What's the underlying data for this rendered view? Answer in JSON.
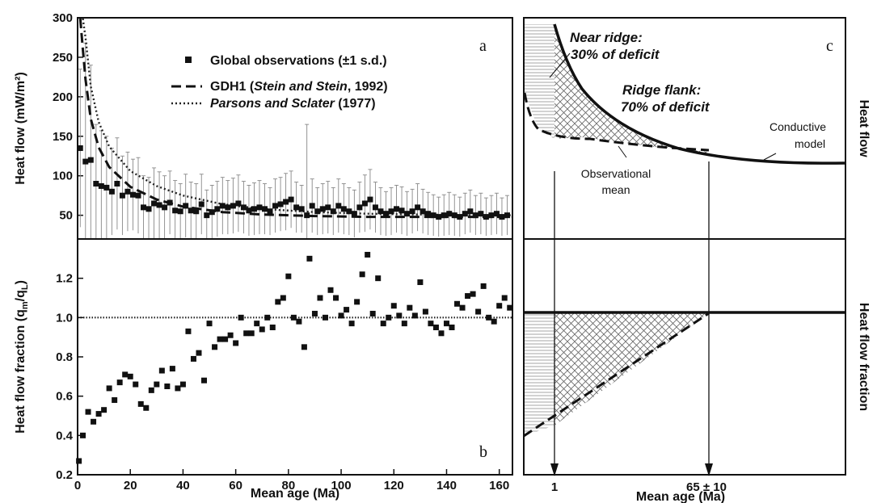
{
  "chart_data": [
    {
      "panel": "a",
      "type": "scatter",
      "ylabel": "Heat flow (mW/m²)",
      "xlim": [
        0,
        165
      ],
      "ylim": [
        20,
        300
      ],
      "yticks": [
        50,
        100,
        150,
        200,
        250,
        300
      ],
      "legend": {
        "placement": "top-center",
        "entries": [
          {
            "marker": "square",
            "text": "Global observations (±1 s.d.)"
          },
          {
            "marker": "dash",
            "text_parts": [
              "GDH1 (",
              "Stein and Stein",
              ", 1992)"
            ]
          },
          {
            "marker": "dot",
            "text_parts": [
              "Parsons and Sclater",
              " (1977)"
            ]
          }
        ]
      },
      "series": [
        {
          "name": "Global observations (±1 s.d.)",
          "points": [
            {
              "x": 1,
              "y": 135,
              "err": 100
            },
            {
              "x": 3,
              "y": 118,
              "err": 150
            },
            {
              "x": 5,
              "y": 120,
              "err": 120
            },
            {
              "x": 7,
              "y": 90,
              "err": 75
            },
            {
              "x": 9,
              "y": 87,
              "err": 70
            },
            {
              "x": 11,
              "y": 85,
              "err": 65
            },
            {
              "x": 13,
              "y": 80,
              "err": 55
            },
            {
              "x": 15,
              "y": 90,
              "err": 58
            },
            {
              "x": 17,
              "y": 75,
              "err": 50
            },
            {
              "x": 19,
              "y": 80,
              "err": 50
            },
            {
              "x": 21,
              "y": 76,
              "err": 45
            },
            {
              "x": 23,
              "y": 75,
              "err": 48
            },
            {
              "x": 25,
              "y": 60,
              "err": 40
            },
            {
              "x": 27,
              "y": 58,
              "err": 40
            },
            {
              "x": 29,
              "y": 65,
              "err": 45
            },
            {
              "x": 31,
              "y": 63,
              "err": 42
            },
            {
              "x": 33,
              "y": 60,
              "err": 40
            },
            {
              "x": 35,
              "y": 66,
              "err": 40
            },
            {
              "x": 37,
              "y": 56,
              "err": 38
            },
            {
              "x": 39,
              "y": 55,
              "err": 35
            },
            {
              "x": 41,
              "y": 62,
              "err": 40
            },
            {
              "x": 43,
              "y": 56,
              "err": 36
            },
            {
              "x": 45,
              "y": 55,
              "err": 35
            },
            {
              "x": 47,
              "y": 64,
              "err": 38
            },
            {
              "x": 49,
              "y": 50,
              "err": 32
            },
            {
              "x": 51,
              "y": 54,
              "err": 34
            },
            {
              "x": 53,
              "y": 58,
              "err": 35
            },
            {
              "x": 55,
              "y": 62,
              "err": 36
            },
            {
              "x": 57,
              "y": 60,
              "err": 34
            },
            {
              "x": 59,
              "y": 62,
              "err": 35
            },
            {
              "x": 61,
              "y": 65,
              "err": 36
            },
            {
              "x": 63,
              "y": 60,
              "err": 33
            },
            {
              "x": 65,
              "y": 56,
              "err": 32
            },
            {
              "x": 67,
              "y": 58,
              "err": 33
            },
            {
              "x": 69,
              "y": 60,
              "err": 34
            },
            {
              "x": 71,
              "y": 58,
              "err": 32
            },
            {
              "x": 73,
              "y": 55,
              "err": 30
            },
            {
              "x": 75,
              "y": 62,
              "err": 34
            },
            {
              "x": 77,
              "y": 64,
              "err": 34
            },
            {
              "x": 79,
              "y": 67,
              "err": 36
            },
            {
              "x": 81,
              "y": 70,
              "err": 36
            },
            {
              "x": 83,
              "y": 60,
              "err": 32
            },
            {
              "x": 85,
              "y": 58,
              "err": 30
            },
            {
              "x": 87,
              "y": 50,
              "err": 115
            },
            {
              "x": 89,
              "y": 62,
              "err": 34
            },
            {
              "x": 91,
              "y": 55,
              "err": 30
            },
            {
              "x": 93,
              "y": 58,
              "err": 32
            },
            {
              "x": 95,
              "y": 60,
              "err": 33
            },
            {
              "x": 97,
              "y": 55,
              "err": 30
            },
            {
              "x": 99,
              "y": 62,
              "err": 34
            },
            {
              "x": 101,
              "y": 58,
              "err": 32
            },
            {
              "x": 103,
              "y": 55,
              "err": 30
            },
            {
              "x": 105,
              "y": 52,
              "err": 30
            },
            {
              "x": 107,
              "y": 60,
              "err": 32
            },
            {
              "x": 109,
              "y": 65,
              "err": 36
            },
            {
              "x": 111,
              "y": 70,
              "err": 38
            },
            {
              "x": 113,
              "y": 60,
              "err": 32
            },
            {
              "x": 115,
              "y": 55,
              "err": 30
            },
            {
              "x": 117,
              "y": 52,
              "err": 28
            },
            {
              "x": 119,
              "y": 55,
              "err": 30
            },
            {
              "x": 121,
              "y": 58,
              "err": 30
            },
            {
              "x": 123,
              "y": 56,
              "err": 30
            },
            {
              "x": 125,
              "y": 52,
              "err": 28
            },
            {
              "x": 127,
              "y": 55,
              "err": 28
            },
            {
              "x": 129,
              "y": 60,
              "err": 30
            },
            {
              "x": 131,
              "y": 55,
              "err": 28
            },
            {
              "x": 133,
              "y": 52,
              "err": 27
            },
            {
              "x": 135,
              "y": 50,
              "err": 26
            },
            {
              "x": 137,
              "y": 48,
              "err": 25
            },
            {
              "x": 139,
              "y": 50,
              "err": 26
            },
            {
              "x": 141,
              "y": 52,
              "err": 27
            },
            {
              "x": 143,
              "y": 50,
              "err": 26
            },
            {
              "x": 145,
              "y": 48,
              "err": 25
            },
            {
              "x": 147,
              "y": 52,
              "err": 26
            },
            {
              "x": 149,
              "y": 55,
              "err": 27
            },
            {
              "x": 151,
              "y": 50,
              "err": 25
            },
            {
              "x": 153,
              "y": 52,
              "err": 26
            },
            {
              "x": 155,
              "y": 48,
              "err": 24
            },
            {
              "x": 157,
              "y": 50,
              "err": 25
            },
            {
              "x": 159,
              "y": 52,
              "err": 26
            },
            {
              "x": 161,
              "y": 48,
              "err": 24
            },
            {
              "x": 163,
              "y": 50,
              "err": 25
            }
          ]
        },
        {
          "name": "GDH1 (Stein and Stein, 1992)",
          "style": "dashed",
          "x": [
            1,
            2,
            3,
            5,
            8,
            12,
            20,
            30,
            40,
            55,
            70,
            90,
            110,
            130,
            150,
            165
          ],
          "y": [
            300,
            260,
            222,
            172,
            136,
            111,
            86,
            70,
            61,
            54,
            51,
            49,
            48,
            48,
            48,
            48
          ]
        },
        {
          "name": "Parsons and Sclater (1977)",
          "style": "dotted",
          "x": [
            2,
            3,
            5,
            8,
            12,
            20,
            30,
            40,
            55,
            70,
            90,
            110,
            130,
            150,
            165
          ],
          "y": [
            300,
            275,
            213,
            168,
            137,
            106,
            87,
            75,
            64,
            58,
            54,
            52,
            51,
            50,
            50
          ]
        }
      ]
    },
    {
      "panel": "b",
      "type": "scatter",
      "xlabel": "Mean age (Ma)",
      "ylabel_parts": [
        "Heat flow fraction (q",
        "m",
        "/q",
        "L",
        ")"
      ],
      "xlim": [
        0,
        165
      ],
      "ylim": [
        0.2,
        1.4
      ],
      "xticks": [
        0,
        20,
        40,
        60,
        80,
        100,
        120,
        140,
        160
      ],
      "yticks": [
        0.2,
        0.4,
        0.6,
        0.8,
        1.0,
        1.2
      ],
      "reference_line": 1.0,
      "points": [
        {
          "x": 0.5,
          "y": 0.27
        },
        {
          "x": 2,
          "y": 0.4
        },
        {
          "x": 4,
          "y": 0.52
        },
        {
          "x": 6,
          "y": 0.47
        },
        {
          "x": 8,
          "y": 0.51
        },
        {
          "x": 10,
          "y": 0.53
        },
        {
          "x": 12,
          "y": 0.64
        },
        {
          "x": 14,
          "y": 0.58
        },
        {
          "x": 16,
          "y": 0.67
        },
        {
          "x": 18,
          "y": 0.71
        },
        {
          "x": 20,
          "y": 0.7
        },
        {
          "x": 22,
          "y": 0.66
        },
        {
          "x": 24,
          "y": 0.56
        },
        {
          "x": 26,
          "y": 0.54
        },
        {
          "x": 28,
          "y": 0.63
        },
        {
          "x": 30,
          "y": 0.66
        },
        {
          "x": 32,
          "y": 0.73
        },
        {
          "x": 34,
          "y": 0.65
        },
        {
          "x": 36,
          "y": 0.74
        },
        {
          "x": 38,
          "y": 0.64
        },
        {
          "x": 40,
          "y": 0.66
        },
        {
          "x": 42,
          "y": 0.93
        },
        {
          "x": 44,
          "y": 0.79
        },
        {
          "x": 46,
          "y": 0.82
        },
        {
          "x": 48,
          "y": 0.68
        },
        {
          "x": 50,
          "y": 0.97
        },
        {
          "x": 52,
          "y": 0.85
        },
        {
          "x": 54,
          "y": 0.89
        },
        {
          "x": 56,
          "y": 0.89
        },
        {
          "x": 58,
          "y": 0.91
        },
        {
          "x": 60,
          "y": 0.87
        },
        {
          "x": 62,
          "y": 1.0
        },
        {
          "x": 64,
          "y": 0.92
        },
        {
          "x": 66,
          "y": 0.92
        },
        {
          "x": 68,
          "y": 0.97
        },
        {
          "x": 70,
          "y": 0.94
        },
        {
          "x": 72,
          "y": 1.0
        },
        {
          "x": 74,
          "y": 0.95
        },
        {
          "x": 76,
          "y": 1.08
        },
        {
          "x": 78,
          "y": 1.1
        },
        {
          "x": 80,
          "y": 1.21
        },
        {
          "x": 82,
          "y": 1.0
        },
        {
          "x": 84,
          "y": 0.98
        },
        {
          "x": 86,
          "y": 0.85
        },
        {
          "x": 88,
          "y": 1.3
        },
        {
          "x": 90,
          "y": 1.02
        },
        {
          "x": 92,
          "y": 1.1
        },
        {
          "x": 94,
          "y": 1.0
        },
        {
          "x": 96,
          "y": 1.14
        },
        {
          "x": 98,
          "y": 1.1
        },
        {
          "x": 100,
          "y": 1.01
        },
        {
          "x": 102,
          "y": 1.04
        },
        {
          "x": 104,
          "y": 0.97
        },
        {
          "x": 106,
          "y": 1.08
        },
        {
          "x": 108,
          "y": 1.22
        },
        {
          "x": 110,
          "y": 1.32
        },
        {
          "x": 112,
          "y": 1.02
        },
        {
          "x": 114,
          "y": 1.2
        },
        {
          "x": 116,
          "y": 0.97
        },
        {
          "x": 118,
          "y": 1.0
        },
        {
          "x": 120,
          "y": 1.06
        },
        {
          "x": 122,
          "y": 1.01
        },
        {
          "x": 124,
          "y": 0.97
        },
        {
          "x": 126,
          "y": 1.05
        },
        {
          "x": 128,
          "y": 1.01
        },
        {
          "x": 130,
          "y": 1.18
        },
        {
          "x": 132,
          "y": 1.03
        },
        {
          "x": 134,
          "y": 0.97
        },
        {
          "x": 136,
          "y": 0.95
        },
        {
          "x": 138,
          "y": 0.92
        },
        {
          "x": 140,
          "y": 0.97
        },
        {
          "x": 142,
          "y": 0.95
        },
        {
          "x": 144,
          "y": 1.07
        },
        {
          "x": 146,
          "y": 1.05
        },
        {
          "x": 148,
          "y": 1.11
        },
        {
          "x": 150,
          "y": 1.12
        },
        {
          "x": 152,
          "y": 1.03
        },
        {
          "x": 154,
          "y": 1.16
        },
        {
          "x": 156,
          "y": 1.0
        },
        {
          "x": 158,
          "y": 0.98
        },
        {
          "x": 160,
          "y": 1.06
        },
        {
          "x": 162,
          "y": 1.1
        },
        {
          "x": 164,
          "y": 1.05
        }
      ]
    },
    {
      "panel": "c",
      "type": "line",
      "title_right_top": "Heat flow",
      "title_right_bottom": "Heat flow fraction",
      "xlabel": "Mean age (Ma)",
      "xtick_labels": [
        "1",
        "65 ± 10"
      ],
      "annotations": {
        "near_ridge": [
          "Near ridge:",
          "30% of deficit"
        ],
        "ridge_flank": [
          "Ridge flank:",
          "70% of deficit"
        ],
        "conductive": [
          "Conductive",
          "model"
        ],
        "observational": [
          "Observational",
          "mean"
        ]
      },
      "series": [
        {
          "name": "Conductive model",
          "style": "solid"
        },
        {
          "name": "Observational mean",
          "style": "dashed"
        }
      ]
    }
  ]
}
